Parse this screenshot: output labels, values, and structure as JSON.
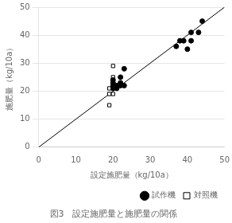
{
  "chart_data": {
    "type": "scatter",
    "title": "図3　設定施肥量と施肥量の関係",
    "xlabel": "設定施肥量（kg/10a）",
    "ylabel": "施肥量（kg/10a）",
    "xlim": [
      0,
      50
    ],
    "ylim": [
      0,
      50
    ],
    "xticks": [
      0,
      10,
      20,
      30,
      40,
      50
    ],
    "yticks": [
      0,
      10,
      20,
      30,
      40,
      50
    ],
    "grid": "y",
    "legend": "lower right",
    "series": [
      {
        "type": "line",
        "line_style": "solid",
        "color": "#000000",
        "x": [
          0,
          50
        ],
        "values": [
          0,
          50
        ]
      },
      {
        "name": "試作機",
        "marker": "circle",
        "color": "#000000",
        "x": [
          20,
          20,
          20,
          20,
          21,
          21,
          22,
          22,
          22,
          23,
          23,
          37,
          38,
          39,
          40,
          41,
          41,
          43,
          44
        ],
        "values": [
          21,
          22,
          23,
          24,
          21,
          22,
          22,
          23,
          25,
          22,
          28,
          36,
          38,
          38,
          35,
          38,
          41,
          41,
          45
        ]
      },
      {
        "name": "対照機",
        "marker": "square-open",
        "color": "#000000",
        "x": [
          19,
          19,
          19,
          20,
          20,
          20,
          20,
          20
        ],
        "values": [
          15,
          19,
          21,
          19,
          21,
          22,
          25,
          29
        ]
      }
    ]
  }
}
